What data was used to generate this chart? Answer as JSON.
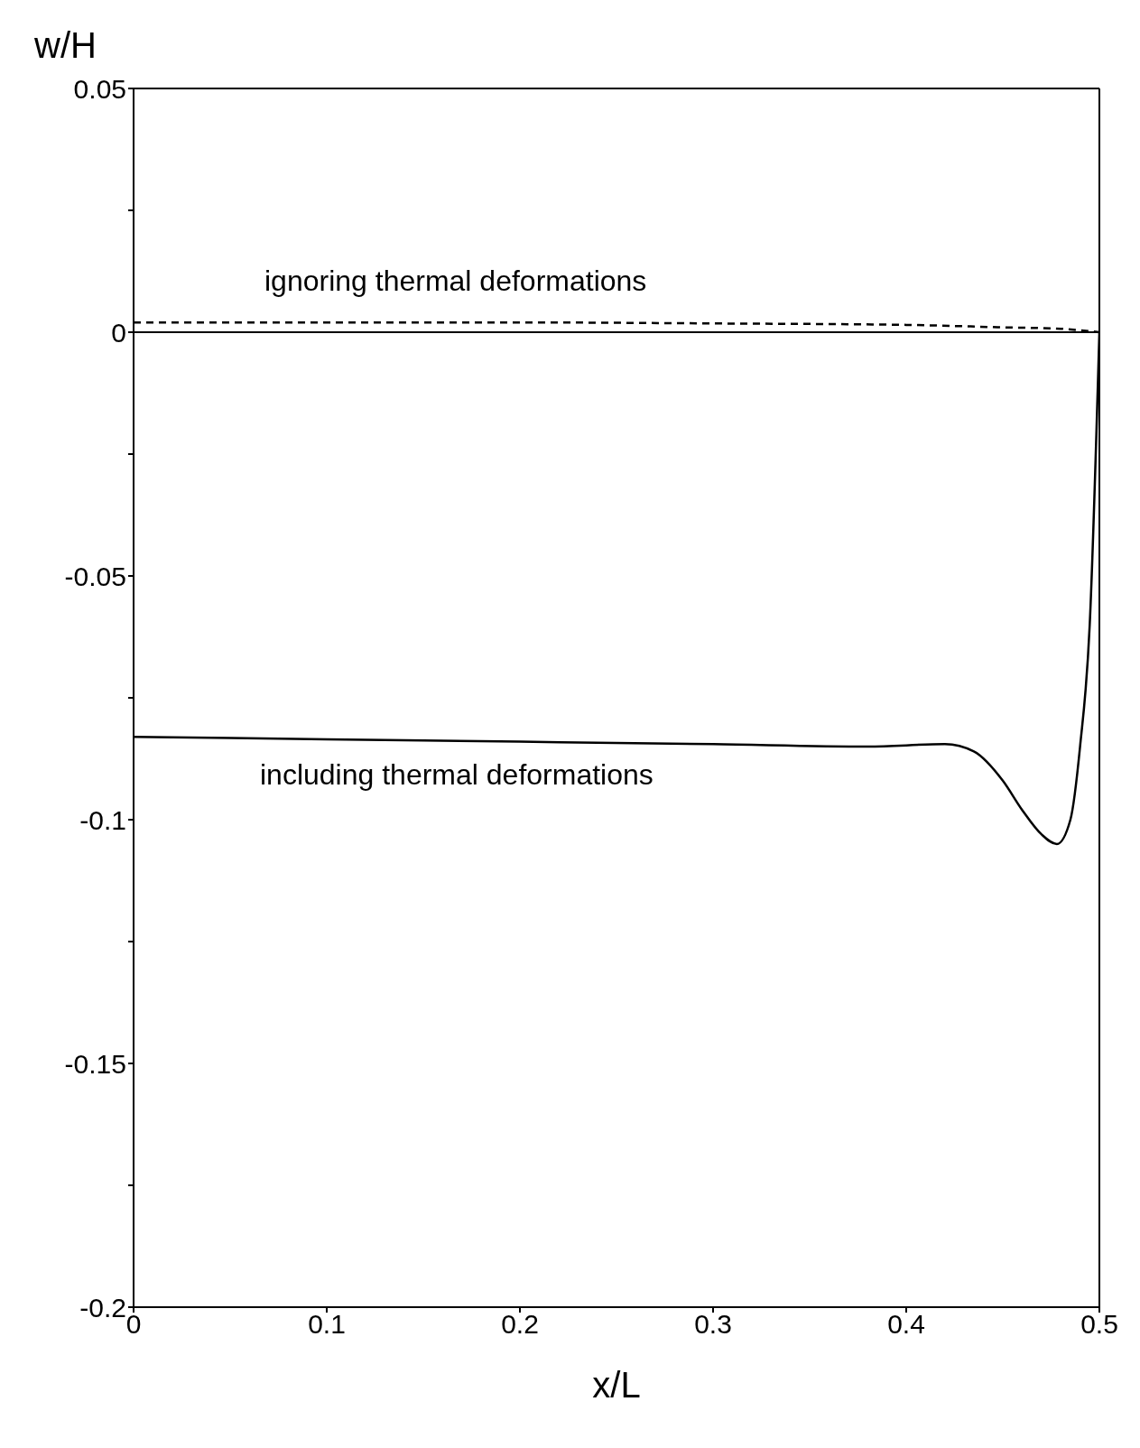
{
  "chart_data": {
    "type": "line",
    "xlabel": "x/L",
    "ylabel": "w/H",
    "xlim": [
      0,
      0.5
    ],
    "xticks": [
      0,
      0.1,
      0.2,
      0.3,
      0.4,
      0.5
    ],
    "ylim": [
      -0.2,
      0.05
    ],
    "yticks": [
      -0.2,
      {
        "value": -0.175,
        "label": null
      },
      -0.15,
      {
        "value": -0.125,
        "label": null
      },
      -0.1,
      {
        "value": -0.075,
        "label": null
      },
      -0.05,
      {
        "value": -0.025,
        "label": null
      },
      0,
      {
        "value": 0.025,
        "label": null
      },
      0.05
    ],
    "marker": "none",
    "series": [
      {
        "color": "#000000",
        "line_style": "dashed",
        "x": [
          0,
          0.1,
          0.2,
          0.3,
          0.4,
          0.45,
          0.48,
          0.5
        ],
        "values": [
          0.002,
          0.002,
          0.002,
          0.0018,
          0.0015,
          0.001,
          0.0007,
          0
        ]
      },
      {
        "color": "#000000",
        "line_style": "solid",
        "x": [
          0,
          0.1,
          0.2,
          0.3,
          0.38,
          0.42,
          0.435,
          0.45,
          0.46,
          0.47,
          0.478,
          0.485,
          0.49,
          0.495,
          0.5
        ],
        "values": [
          -0.083,
          -0.0835,
          -0.084,
          -0.0845,
          -0.085,
          -0.0845,
          -0.086,
          -0.092,
          -0.098,
          -0.103,
          -0.105,
          -0.1,
          -0.085,
          -0.06,
          0
        ]
      }
    ],
    "ref_lines": [
      {
        "axis": "y",
        "value": 0,
        "color": "#000000",
        "line_style": "solid"
      }
    ],
    "annotations": [
      "ignoring thermal deformations",
      "including thermal deformations"
    ]
  }
}
